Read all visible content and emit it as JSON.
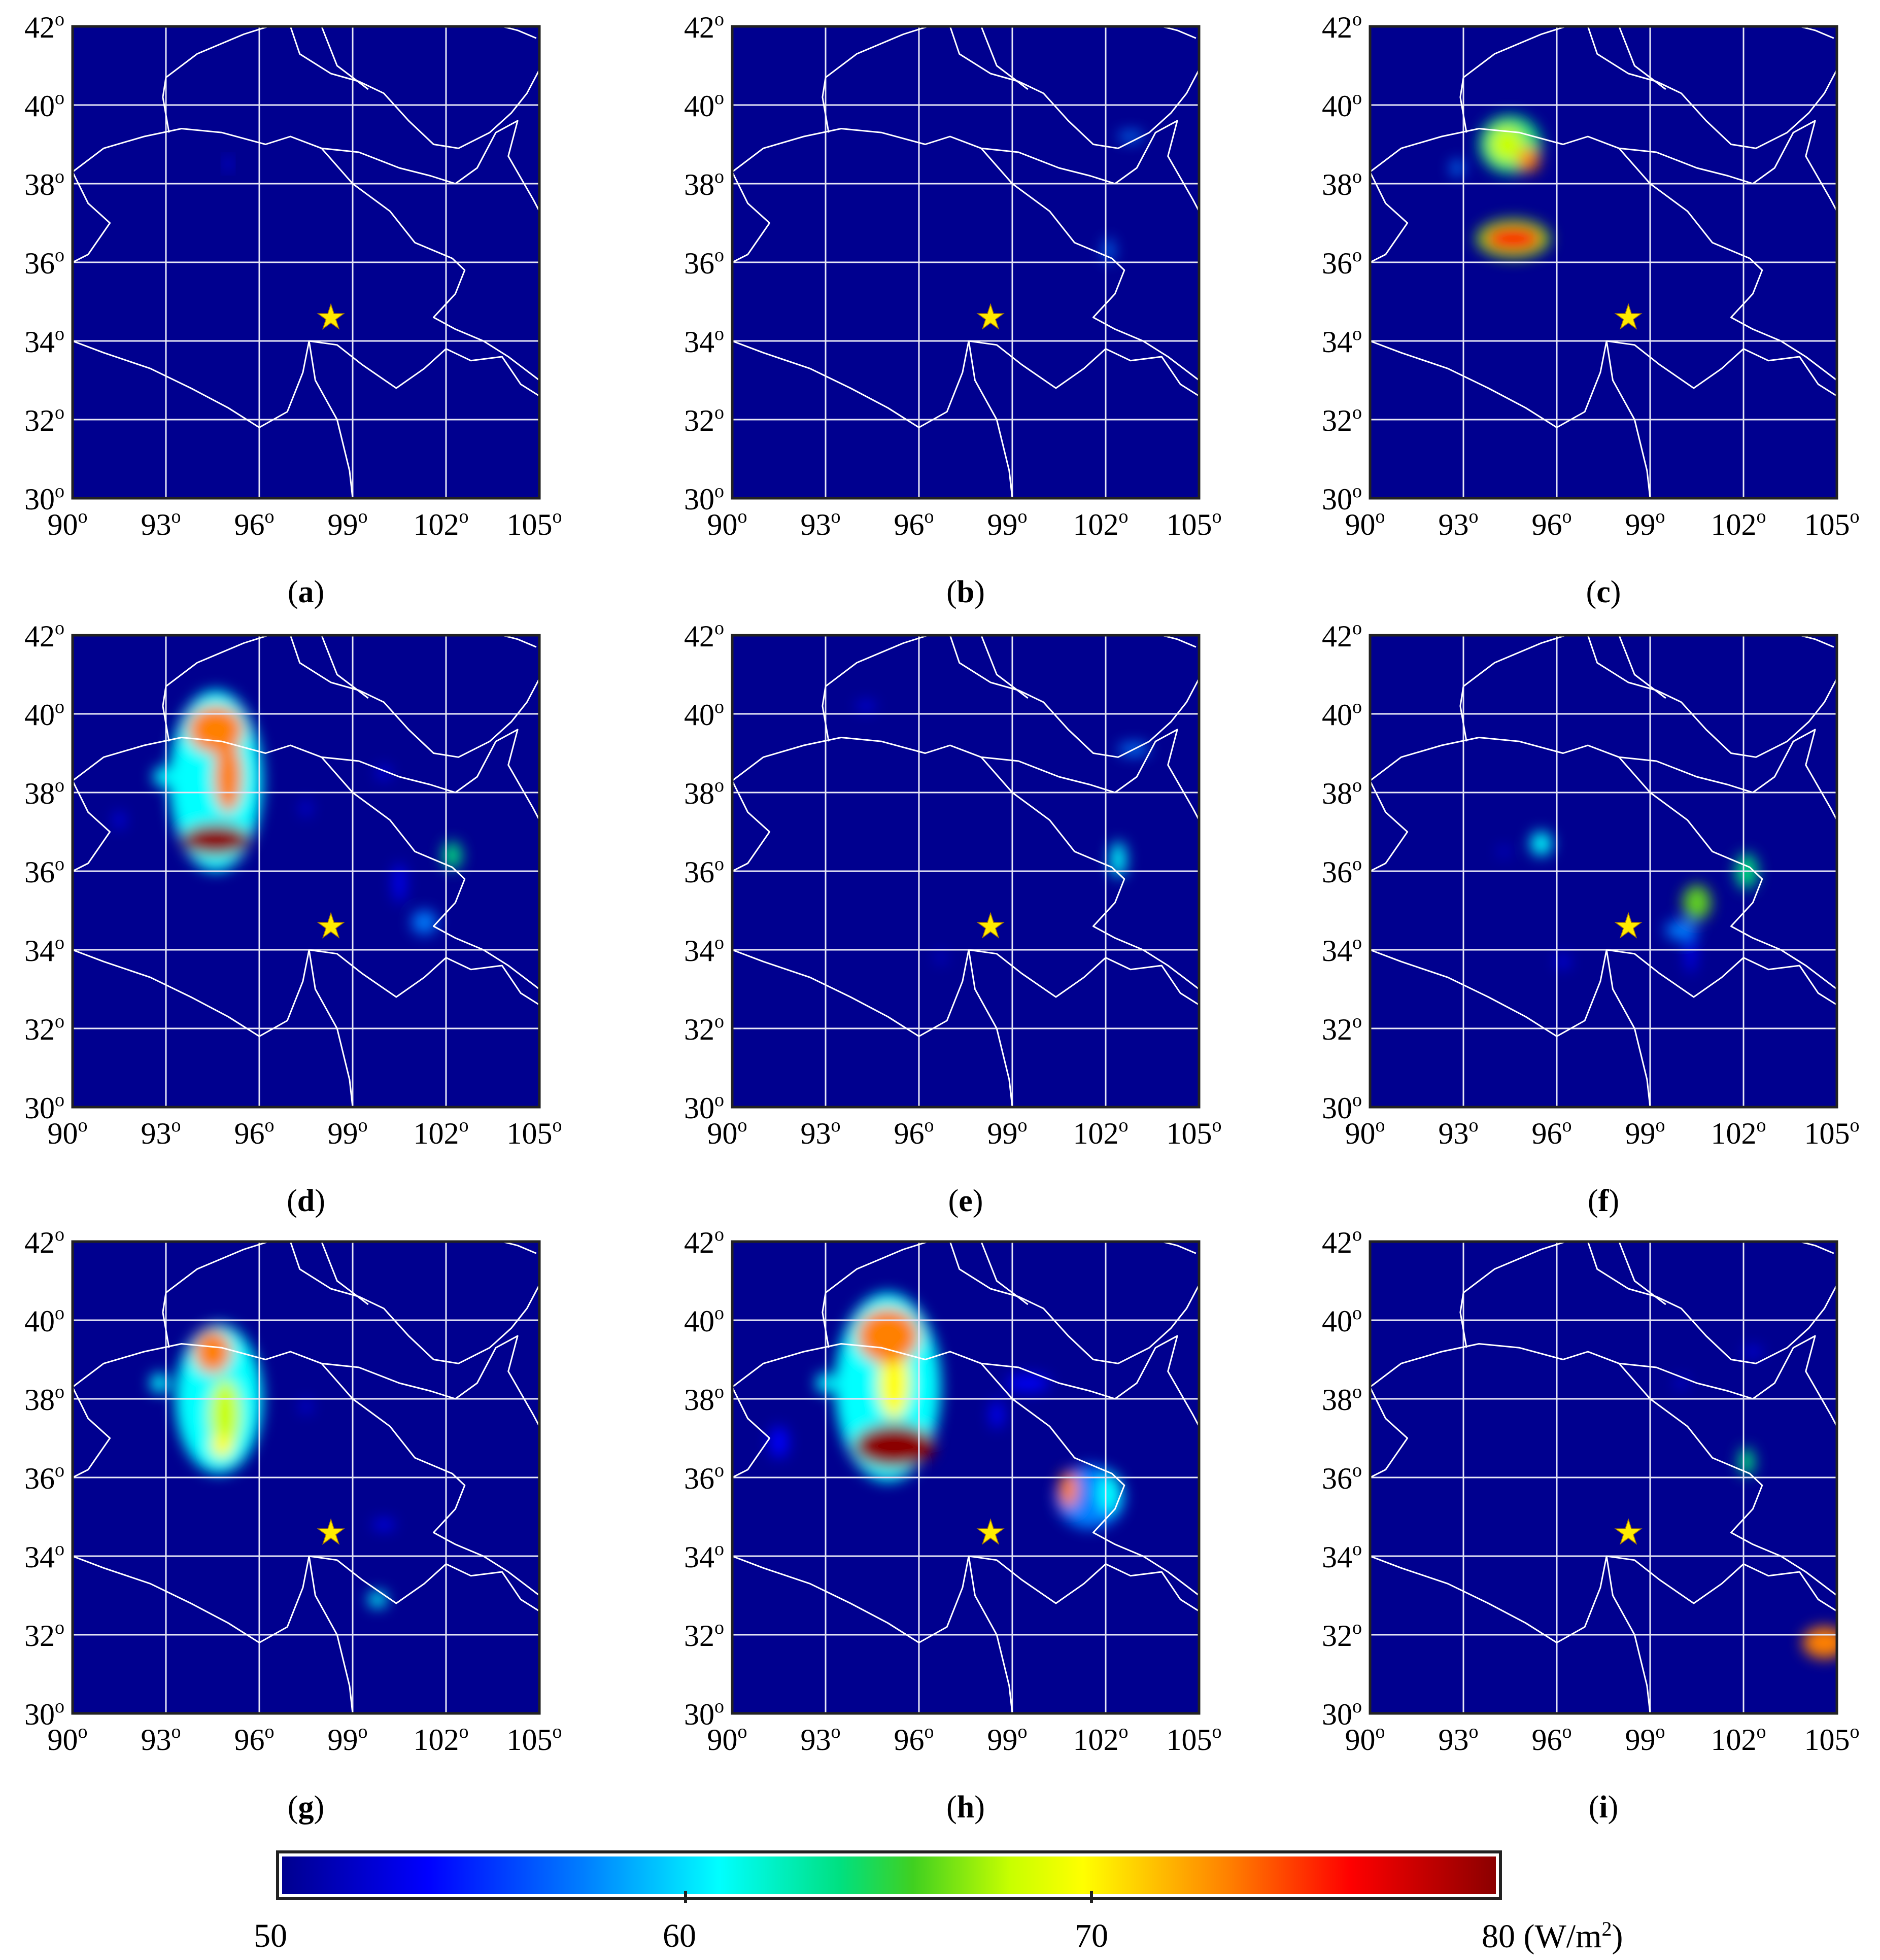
{
  "colors": {
    "background": "#00008f",
    "border": "#ffffff",
    "grid": "#e6e6f5",
    "star": "#ffeb00"
  },
  "axes": {
    "x_ticks": [
      "90",
      "93",
      "96",
      "99",
      "102",
      "105"
    ],
    "y_ticks": [
      "42",
      "40",
      "38",
      "36",
      "34",
      "32",
      "30"
    ],
    "degree_mark": "o",
    "lon_range": [
      90,
      105
    ],
    "lat_range": [
      30,
      42
    ]
  },
  "star": {
    "lon": 98.3,
    "lat": 34.6,
    "glyph": "★"
  },
  "panels": [
    {
      "label": "a",
      "blobs": [
        {
          "lon": 95.0,
          "lat": 38.5,
          "rx": 0.12,
          "ry": 0.15,
          "v": 57
        }
      ]
    },
    {
      "label": "b",
      "blobs": [
        {
          "lon": 102.1,
          "lat": 36.3,
          "rx": 0.15,
          "ry": 0.3,
          "v": 60
        },
        {
          "lon": 102.8,
          "lat": 39.2,
          "rx": 0.4,
          "ry": 0.12,
          "v": 58
        }
      ]
    },
    {
      "label": "c",
      "blobs": [
        {
          "lon": 94.5,
          "lat": 39.0,
          "rx": 1.0,
          "ry": 0.75,
          "v": 64
        },
        {
          "lon": 94.4,
          "lat": 39.0,
          "rx": 0.55,
          "ry": 0.45,
          "v": 69
        },
        {
          "lon": 95.1,
          "lat": 38.6,
          "rx": 0.35,
          "ry": 0.3,
          "v": 74
        },
        {
          "lon": 94.6,
          "lat": 36.6,
          "rx": 1.2,
          "ry": 0.5,
          "v": 66
        },
        {
          "lon": 94.6,
          "lat": 36.6,
          "rx": 0.9,
          "ry": 0.3,
          "v": 78
        },
        {
          "lon": 92.8,
          "lat": 38.4,
          "rx": 0.2,
          "ry": 0.2,
          "v": 60
        }
      ]
    },
    {
      "label": "d",
      "blobs": [
        {
          "lon": 94.6,
          "lat": 38.3,
          "rx": 1.5,
          "ry": 2.3,
          "v": 63
        },
        {
          "lon": 94.6,
          "lat": 39.6,
          "rx": 0.9,
          "ry": 0.6,
          "v": 75
        },
        {
          "lon": 95.0,
          "lat": 38.4,
          "rx": 0.45,
          "ry": 0.9,
          "v": 74
        },
        {
          "lon": 94.6,
          "lat": 36.8,
          "rx": 1.1,
          "ry": 0.4,
          "v": 80
        },
        {
          "lon": 92.9,
          "lat": 38.4,
          "rx": 0.3,
          "ry": 0.25,
          "v": 62
        },
        {
          "lon": 102.2,
          "lat": 36.4,
          "rx": 0.3,
          "ry": 0.35,
          "v": 64
        },
        {
          "lon": 100.5,
          "lat": 35.7,
          "rx": 0.18,
          "ry": 0.5,
          "v": 57
        },
        {
          "lon": 101.3,
          "lat": 34.7,
          "rx": 0.4,
          "ry": 0.3,
          "v": 58
        },
        {
          "lon": 97.5,
          "lat": 37.6,
          "rx": 0.12,
          "ry": 0.2,
          "v": 56
        },
        {
          "lon": 91.5,
          "lat": 37.3,
          "rx": 0.15,
          "ry": 0.2,
          "v": 55
        },
        {
          "lon": 100.0,
          "lat": 38.5,
          "rx": 0.2,
          "ry": 0.15,
          "v": 56
        }
      ]
    },
    {
      "label": "e",
      "blobs": [
        {
          "lon": 102.4,
          "lat": 36.3,
          "rx": 0.25,
          "ry": 0.45,
          "v": 62
        },
        {
          "lon": 102.9,
          "lat": 39.1,
          "rx": 0.5,
          "ry": 0.15,
          "v": 58
        },
        {
          "lon": 94.3,
          "lat": 40.2,
          "rx": 0.3,
          "ry": 0.1,
          "v": 55
        },
        {
          "lon": 96.7,
          "lat": 33.8,
          "rx": 0.15,
          "ry": 0.1,
          "v": 55
        }
      ]
    },
    {
      "label": "f",
      "blobs": [
        {
          "lon": 95.5,
          "lat": 36.7,
          "rx": 0.35,
          "ry": 0.3,
          "v": 63
        },
        {
          "lon": 100.5,
          "lat": 35.2,
          "rx": 0.45,
          "ry": 0.45,
          "v": 66
        },
        {
          "lon": 102.1,
          "lat": 36.0,
          "rx": 0.35,
          "ry": 0.45,
          "v": 64
        },
        {
          "lon": 100.0,
          "lat": 34.5,
          "rx": 0.5,
          "ry": 0.25,
          "v": 58
        },
        {
          "lon": 100.3,
          "lat": 34.0,
          "rx": 0.15,
          "ry": 0.6,
          "v": 56
        },
        {
          "lon": 96.2,
          "lat": 33.7,
          "rx": 0.2,
          "ry": 0.15,
          "v": 55
        },
        {
          "lon": 94.3,
          "lat": 36.5,
          "rx": 0.15,
          "ry": 0.1,
          "v": 55
        }
      ]
    },
    {
      "label": "g",
      "blobs": [
        {
          "lon": 94.7,
          "lat": 38.0,
          "rx": 1.4,
          "ry": 1.9,
          "v": 63
        },
        {
          "lon": 94.5,
          "lat": 39.2,
          "rx": 0.6,
          "ry": 0.55,
          "v": 74
        },
        {
          "lon": 94.9,
          "lat": 37.6,
          "rx": 0.5,
          "ry": 0.9,
          "v": 69
        },
        {
          "lon": 94.8,
          "lat": 36.8,
          "rx": 0.35,
          "ry": 0.3,
          "v": 73
        },
        {
          "lon": 92.8,
          "lat": 38.4,
          "rx": 0.3,
          "ry": 0.25,
          "v": 61
        },
        {
          "lon": 99.8,
          "lat": 32.9,
          "rx": 0.3,
          "ry": 0.2,
          "v": 61
        },
        {
          "lon": 97.5,
          "lat": 37.8,
          "rx": 0.15,
          "ry": 0.15,
          "v": 56
        },
        {
          "lon": 100.0,
          "lat": 34.8,
          "rx": 0.35,
          "ry": 0.12,
          "v": 56
        }
      ]
    },
    {
      "label": "h",
      "blobs": [
        {
          "lon": 95.0,
          "lat": 38.3,
          "rx": 1.7,
          "ry": 2.4,
          "v": 63
        },
        {
          "lon": 95.0,
          "lat": 39.6,
          "rx": 1.0,
          "ry": 0.7,
          "v": 75
        },
        {
          "lon": 95.2,
          "lat": 38.4,
          "rx": 0.5,
          "ry": 0.9,
          "v": 73
        },
        {
          "lon": 95.2,
          "lat": 36.8,
          "rx": 1.3,
          "ry": 0.55,
          "v": 80
        },
        {
          "lon": 93.0,
          "lat": 38.4,
          "rx": 0.3,
          "ry": 0.25,
          "v": 63
        },
        {
          "lon": 101.5,
          "lat": 35.5,
          "rx": 1.1,
          "ry": 0.8,
          "v": 60
        },
        {
          "lon": 100.8,
          "lat": 35.7,
          "rx": 0.3,
          "ry": 0.45,
          "v": 76
        },
        {
          "lon": 102.1,
          "lat": 35.6,
          "rx": 0.35,
          "ry": 0.5,
          "v": 62
        },
        {
          "lon": 91.5,
          "lat": 36.9,
          "rx": 0.3,
          "ry": 0.4,
          "v": 57
        },
        {
          "lon": 99.5,
          "lat": 38.4,
          "rx": 0.7,
          "ry": 0.2,
          "v": 57
        },
        {
          "lon": 98.5,
          "lat": 37.6,
          "rx": 0.2,
          "ry": 0.35,
          "v": 57
        }
      ]
    },
    {
      "label": "i",
      "blobs": [
        {
          "lon": 102.1,
          "lat": 36.4,
          "rx": 0.25,
          "ry": 0.35,
          "v": 65
        },
        {
          "lon": 104.6,
          "lat": 31.8,
          "rx": 0.7,
          "ry": 0.4,
          "v": 76
        },
        {
          "lon": 100.0,
          "lat": 38.4,
          "rx": 0.15,
          "ry": 0.12,
          "v": 55
        },
        {
          "lon": 102.3,
          "lat": 39.2,
          "rx": 0.3,
          "ry": 0.1,
          "v": 55
        }
      ]
    }
  ],
  "colorbar": {
    "ticks": [
      "50",
      "60",
      "70",
      "80"
    ],
    "unit": "(W/m",
    "unit_sup": "2",
    "unit_close": ")"
  }
}
